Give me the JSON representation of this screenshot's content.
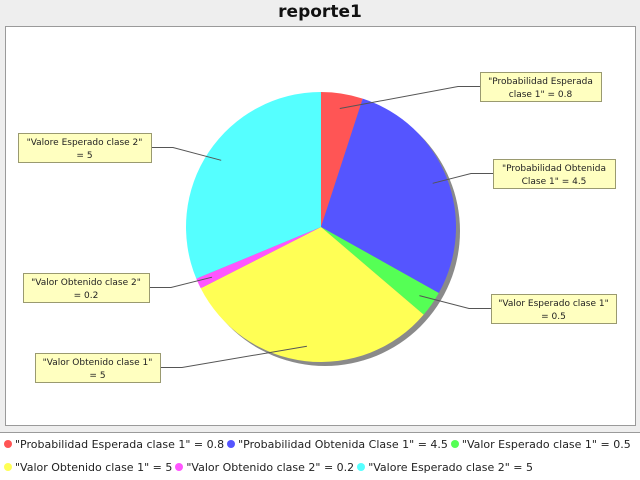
{
  "chart_data": {
    "type": "pie",
    "title": "reporte1",
    "categories": [
      "Probabilidad Esperada clase 1",
      "Probabilidad Obtenida Clase 1",
      "Valor Esperado clase 1",
      "Valor Obtenido clase 1",
      "Valor Obtenido clase 2",
      "Valore Esperado clase 2"
    ],
    "values": [
      0.8,
      4.5,
      0.5,
      5,
      0.2,
      5
    ],
    "colors": [
      "#ff5555",
      "#5555ff",
      "#55ff55",
      "#ffff55",
      "#ff55ff",
      "#55ffff"
    ],
    "slice_labels": [
      {
        "line1": "\"Probabilidad Esperada",
        "line2": "clase 1\" = 0.8"
      },
      {
        "line1": "\"Probabilidad Obtenida",
        "line2": "Clase 1\" = 4.5"
      },
      {
        "line1": "\"Valor Esperado clase 1\"",
        "line2": "= 0.5"
      },
      {
        "line1": "\"Valor Obtenido clase 1\"",
        "line2": "= 5"
      },
      {
        "line1": "\"Valor Obtenido clase 2\"",
        "line2": "= 0.2"
      },
      {
        "line1": "\"Valore Esperado clase 2\"",
        "line2": "= 5"
      }
    ],
    "legend": [
      "\"Probabilidad Esperada clase 1\" = 0.8",
      "\"Probabilidad Obtenida Clase 1\" = 4.5",
      "\"Valor Esperado clase 1\" = 0.5",
      "\"Valor Obtenido clase 1\" = 5",
      "\"Valor Obtenido clase 2\" = 0.2",
      "\"Valore Esperado clase 2\" = 5"
    ],
    "legend_position": "bottom"
  }
}
